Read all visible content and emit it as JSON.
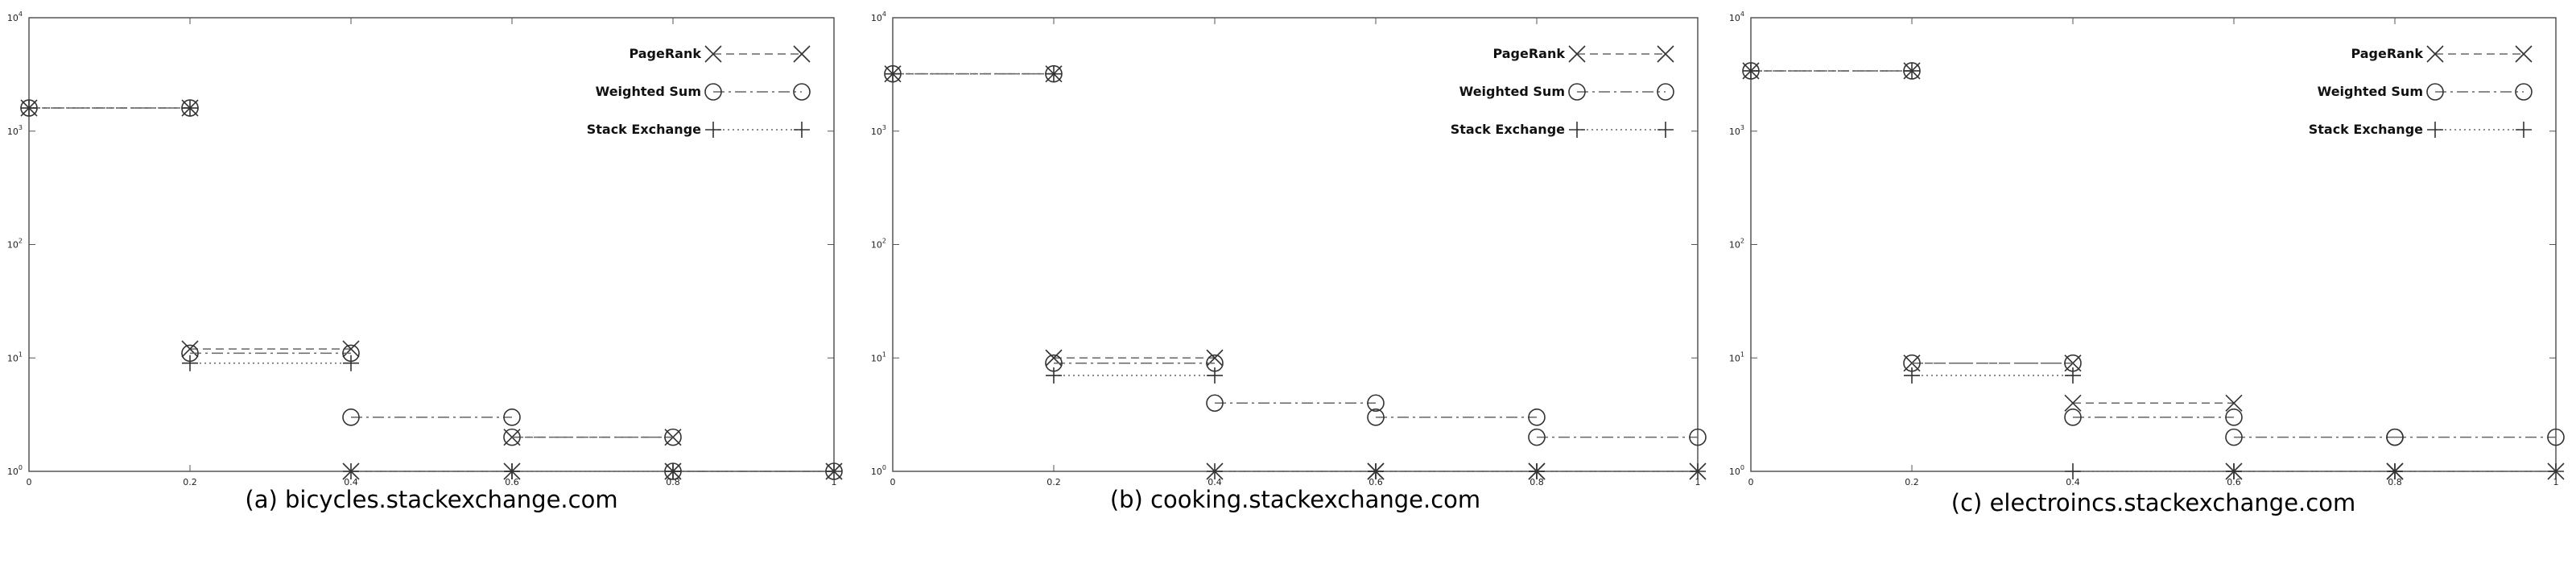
{
  "charts": [
    {
      "type": "line",
      "caption": "(a) bicycles.stackexchange.com",
      "x_ticks": [
        "0",
        "0.2",
        "0.4",
        "0.6",
        "0.8",
        "1"
      ],
      "y_ticks": [
        "10^0",
        "10^1",
        "10^2",
        "10^3",
        "10^4"
      ],
      "xlim": [
        0,
        1
      ],
      "ylim": [
        1,
        10000
      ],
      "y_scale": "log",
      "legend_position": "top-right",
      "series": [
        {
          "name": "PageRank",
          "marker": "x",
          "linestyle": "dashed",
          "points": [
            [
              0,
              1600
            ],
            [
              0.2,
              1600
            ],
            [
              0.2,
              12
            ],
            [
              0.4,
              12
            ],
            [
              0.4,
              1
            ],
            [
              0.6,
              1
            ],
            [
              0.6,
              2
            ],
            [
              0.8,
              2
            ],
            [
              0.8,
              1
            ],
            [
              1,
              1
            ]
          ]
        },
        {
          "name": "Weighted Sum",
          "marker": "circle",
          "linestyle": "dashdot",
          "points": [
            [
              0,
              1600
            ],
            [
              0.2,
              1600
            ],
            [
              0.2,
              11
            ],
            [
              0.4,
              11
            ],
            [
              0.4,
              3
            ],
            [
              0.6,
              3
            ],
            [
              0.6,
              2
            ],
            [
              0.8,
              2
            ],
            [
              0.8,
              1
            ],
            [
              1,
              1
            ]
          ]
        },
        {
          "name": "Stack Exchange",
          "marker": "plus",
          "linestyle": "dotted",
          "points": [
            [
              0,
              1600
            ],
            [
              0.2,
              1600
            ],
            [
              0.2,
              9
            ],
            [
              0.4,
              9
            ],
            [
              0.4,
              1
            ],
            [
              0.6,
              1
            ],
            [
              0.6,
              1
            ],
            [
              0.8,
              1
            ],
            [
              0.8,
              1
            ],
            [
              1,
              1
            ]
          ]
        }
      ]
    },
    {
      "type": "line",
      "caption": "(b) cooking.stackexchange.com",
      "x_ticks": [
        "0",
        "0.2",
        "0.4",
        "0.6",
        "0.8",
        "1"
      ],
      "y_ticks": [
        "10^0",
        "10^1",
        "10^2",
        "10^3",
        "10^4"
      ],
      "xlim": [
        0,
        1
      ],
      "ylim": [
        1,
        10000
      ],
      "y_scale": "log",
      "legend_position": "top-right",
      "series": [
        {
          "name": "PageRank",
          "marker": "x",
          "linestyle": "dashed",
          "points": [
            [
              0,
              3200
            ],
            [
              0.2,
              3200
            ],
            [
              0.2,
              10
            ],
            [
              0.4,
              10
            ],
            [
              0.4,
              1
            ],
            [
              0.6,
              1
            ],
            [
              0.6,
              1
            ],
            [
              0.8,
              1
            ],
            [
              0.8,
              1
            ],
            [
              1,
              1
            ]
          ]
        },
        {
          "name": "Weighted Sum",
          "marker": "circle",
          "linestyle": "dashdot",
          "points": [
            [
              0,
              3200
            ],
            [
              0.2,
              3200
            ],
            [
              0.2,
              9
            ],
            [
              0.4,
              9
            ],
            [
              0.4,
              4
            ],
            [
              0.6,
              4
            ],
            [
              0.6,
              3
            ],
            [
              0.8,
              3
            ],
            [
              0.8,
              2
            ],
            [
              1,
              2
            ]
          ]
        },
        {
          "name": "Stack Exchange",
          "marker": "plus",
          "linestyle": "dotted",
          "points": [
            [
              0,
              3200
            ],
            [
              0.2,
              3200
            ],
            [
              0.2,
              7
            ],
            [
              0.4,
              7
            ],
            [
              0.4,
              1
            ],
            [
              0.6,
              1
            ],
            [
              0.6,
              1
            ],
            [
              0.8,
              1
            ],
            [
              0.8,
              1
            ],
            [
              1,
              1
            ]
          ]
        }
      ]
    },
    {
      "type": "line",
      "caption": "(c) electroincs.stackexchange.com",
      "x_ticks": [
        "0",
        "0.2",
        "0.4",
        "0.6",
        "0.8",
        "1"
      ],
      "y_ticks": [
        "10^0",
        "10^1",
        "10^2",
        "10^3",
        "10^4"
      ],
      "xlim": [
        0,
        1
      ],
      "ylim": [
        1,
        10000
      ],
      "y_scale": "log",
      "legend_position": "top-right",
      "series": [
        {
          "name": "PageRank",
          "marker": "x",
          "linestyle": "dashed",
          "points": [
            [
              0,
              3400
            ],
            [
              0.2,
              3400
            ],
            [
              0.2,
              9
            ],
            [
              0.4,
              9
            ],
            [
              0.4,
              4
            ],
            [
              0.6,
              4
            ],
            [
              0.6,
              1
            ],
            [
              0.8,
              1
            ],
            [
              0.8,
              1
            ],
            [
              1,
              1
            ]
          ]
        },
        {
          "name": "Weighted Sum",
          "marker": "circle",
          "linestyle": "dashdot",
          "points": [
            [
              0,
              3400
            ],
            [
              0.2,
              3400
            ],
            [
              0.2,
              9
            ],
            [
              0.4,
              9
            ],
            [
              0.4,
              3
            ],
            [
              0.6,
              3
            ],
            [
              0.6,
              2
            ],
            [
              0.8,
              2
            ],
            [
              0.8,
              2
            ],
            [
              1,
              2
            ]
          ]
        },
        {
          "name": "Stack Exchange",
          "marker": "plus",
          "linestyle": "dotted",
          "points": [
            [
              0,
              3400
            ],
            [
              0.2,
              3400
            ],
            [
              0.2,
              7
            ],
            [
              0.4,
              7
            ],
            [
              0.4,
              1
            ],
            [
              0.6,
              1
            ],
            [
              0.6,
              1
            ],
            [
              0.8,
              1
            ],
            [
              0.8,
              1
            ],
            [
              1,
              1
            ]
          ]
        }
      ]
    }
  ],
  "chart_data": [
    {
      "type": "line",
      "title": "(a) bicycles.stackexchange.com",
      "x_ticks": [
        "0",
        "0.2",
        "0.4",
        "0.6",
        "0.8",
        "1"
      ],
      "y_ticks": [
        "10^0",
        "10^1",
        "10^2",
        "10^3",
        "10^4"
      ],
      "xlim": [
        0,
        1
      ],
      "ylim": [
        1,
        10000
      ],
      "y_scale": "log",
      "series": [
        {
          "name": "PageRank",
          "x": [
            0,
            0.2,
            0.2,
            0.4,
            0.4,
            0.6,
            0.6,
            0.8,
            0.8,
            1
          ],
          "y": [
            1600,
            1600,
            12,
            12,
            1,
            1,
            2,
            2,
            1,
            1
          ]
        },
        {
          "name": "Weighted Sum",
          "x": [
            0,
            0.2,
            0.2,
            0.4,
            0.4,
            0.6,
            0.6,
            0.8,
            0.8,
            1
          ],
          "y": [
            1600,
            1600,
            11,
            11,
            3,
            3,
            2,
            2,
            1,
            1
          ]
        },
        {
          "name": "Stack Exchange",
          "x": [
            0,
            0.2,
            0.2,
            0.4,
            0.4,
            0.6,
            0.6,
            0.8,
            0.8,
            1
          ],
          "y": [
            1600,
            1600,
            9,
            9,
            1,
            1,
            1,
            1,
            1,
            1
          ]
        }
      ]
    },
    {
      "type": "line",
      "title": "(b) cooking.stackexchange.com",
      "x_ticks": [
        "0",
        "0.2",
        "0.4",
        "0.6",
        "0.8",
        "1"
      ],
      "y_ticks": [
        "10^0",
        "10^1",
        "10^2",
        "10^3",
        "10^4"
      ],
      "xlim": [
        0,
        1
      ],
      "ylim": [
        1,
        10000
      ],
      "y_scale": "log",
      "series": [
        {
          "name": "PageRank",
          "x": [
            0,
            0.2,
            0.2,
            0.4,
            0.4,
            0.6,
            0.6,
            0.8,
            0.8,
            1
          ],
          "y": [
            3200,
            3200,
            10,
            10,
            1,
            1,
            1,
            1,
            1,
            1
          ]
        },
        {
          "name": "Weighted Sum",
          "x": [
            0,
            0.2,
            0.2,
            0.4,
            0.4,
            0.6,
            0.6,
            0.8,
            0.8,
            1
          ],
          "y": [
            3200,
            3200,
            9,
            9,
            4,
            4,
            3,
            3,
            2,
            2
          ]
        },
        {
          "name": "Stack Exchange",
          "x": [
            0,
            0.2,
            0.2,
            0.4,
            0.4,
            0.6,
            0.6,
            0.8,
            0.8,
            1
          ],
          "y": [
            3200,
            3200,
            7,
            7,
            1,
            1,
            1,
            1,
            1,
            1
          ]
        }
      ]
    },
    {
      "type": "line",
      "title": "(c) electroincs.stackexchange.com",
      "x_ticks": [
        "0",
        "0.2",
        "0.4",
        "0.6",
        "0.8",
        "1"
      ],
      "y_ticks": [
        "10^0",
        "10^1",
        "10^2",
        "10^3",
        "10^4"
      ],
      "xlim": [
        0,
        1
      ],
      "ylim": [
        1,
        10000
      ],
      "y_scale": "log",
      "series": [
        {
          "name": "PageRank",
          "x": [
            0,
            0.2,
            0.2,
            0.4,
            0.4,
            0.6,
            0.6,
            0.8,
            0.8,
            1
          ],
          "y": [
            3400,
            3400,
            9,
            9,
            4,
            4,
            1,
            1,
            1,
            1
          ]
        },
        {
          "name": "Weighted Sum",
          "x": [
            0,
            0.2,
            0.2,
            0.4,
            0.4,
            0.6,
            0.6,
            0.8,
            0.8,
            1
          ],
          "y": [
            3400,
            3400,
            9,
            9,
            3,
            3,
            2,
            2,
            2,
            2
          ]
        },
        {
          "name": "Stack Exchange",
          "x": [
            0,
            0.2,
            0.2,
            0.4,
            0.4,
            0.6,
            0.6,
            0.8,
            0.8,
            1
          ],
          "y": [
            3400,
            3400,
            7,
            7,
            1,
            1,
            1,
            1,
            1,
            1
          ]
        }
      ]
    }
  ]
}
